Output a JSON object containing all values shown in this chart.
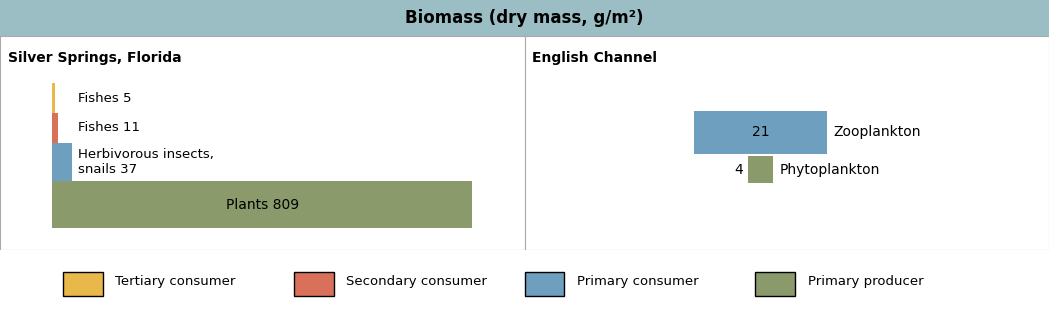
{
  "title": "Biomass (dry mass, g/m²)",
  "title_bg": "#9bbec4",
  "title_fontsize": 12,
  "panel_left_title": "Silver Springs, Florida",
  "panel_right_title": "English Channel",
  "left_bars": [
    {
      "label": "Plants 809",
      "value": 809,
      "color": "#8a9a6a",
      "category": "Primary producer"
    },
    {
      "label": "Herbivorous insects,\nsnails 37",
      "value": 37,
      "color": "#6e9fbe",
      "category": "Primary consumer"
    },
    {
      "label": "Fishes 11",
      "value": 11,
      "color": "#d9705a",
      "category": "Secondary consumer"
    },
    {
      "label": "Fishes 5",
      "value": 5,
      "color": "#e8b84b",
      "category": "Tertiary consumer"
    }
  ],
  "right_bars": [
    {
      "label": "Zooplankton",
      "value": 21,
      "color": "#6e9fbe",
      "category": "Primary consumer",
      "display": "21"
    },
    {
      "label": "Phytoplankton",
      "value": 4,
      "color": "#8a9a6a",
      "category": "Primary producer",
      "display": "4"
    }
  ],
  "legend_entries": [
    {
      "label": "Tertiary consumer",
      "color": "#e8b84b"
    },
    {
      "label": "Secondary consumer",
      "color": "#d9705a"
    },
    {
      "label": "Primary consumer",
      "color": "#6e9fbe"
    },
    {
      "label": "Primary producer",
      "color": "#8a9a6a"
    }
  ],
  "border_color": "#aaaaaa",
  "bg_color": "#ffffff",
  "text_color": "#000000",
  "fig_width": 10.49,
  "fig_height": 3.14
}
